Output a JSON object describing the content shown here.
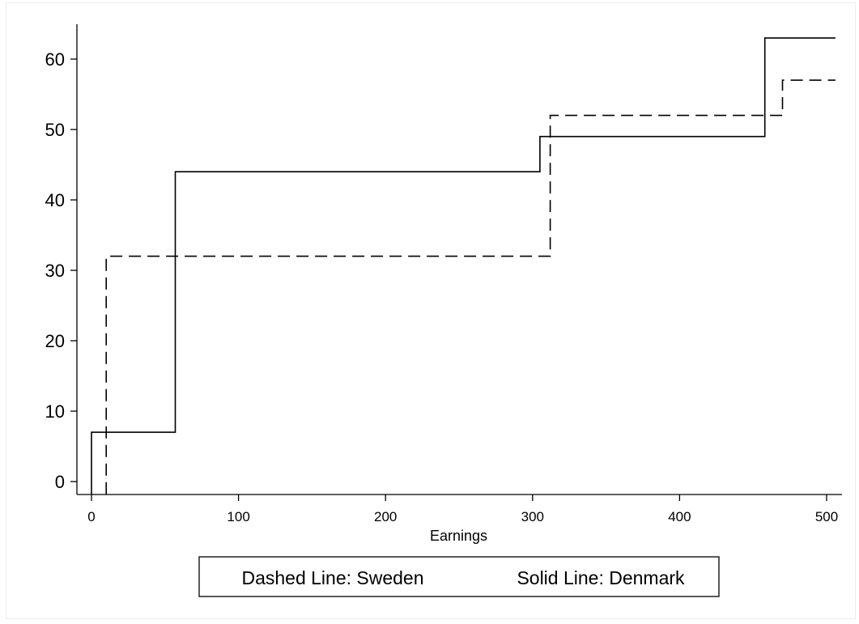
{
  "chart_data": {
    "type": "line",
    "step": true,
    "xlabel": "Earnings",
    "ylabel": "",
    "xlim": [
      -10,
      506
    ],
    "ylim": [
      -1.8,
      65
    ],
    "xticks": [
      0,
      100,
      200,
      300,
      400,
      500
    ],
    "yticks": [
      0,
      10,
      20,
      30,
      40,
      50,
      60
    ],
    "grid": false,
    "legend": {
      "position": "bottom",
      "entries": [
        "Dashed Line: Sweden",
        "Solid Line: Denmark"
      ]
    },
    "series": [
      {
        "name": "Sweden",
        "style": "dashed",
        "points": [
          [
            10,
            -1.8
          ],
          [
            10,
            32
          ],
          [
            312,
            32
          ],
          [
            312,
            52
          ],
          [
            470,
            52
          ],
          [
            470,
            57
          ],
          [
            506,
            57
          ]
        ]
      },
      {
        "name": "Denmark",
        "style": "solid",
        "points": [
          [
            0,
            -1.8
          ],
          [
            0,
            7
          ],
          [
            57,
            7
          ],
          [
            57,
            44
          ],
          [
            305,
            44
          ],
          [
            305,
            49
          ],
          [
            458,
            49
          ],
          [
            458,
            63
          ],
          [
            506,
            63
          ]
        ]
      }
    ]
  }
}
